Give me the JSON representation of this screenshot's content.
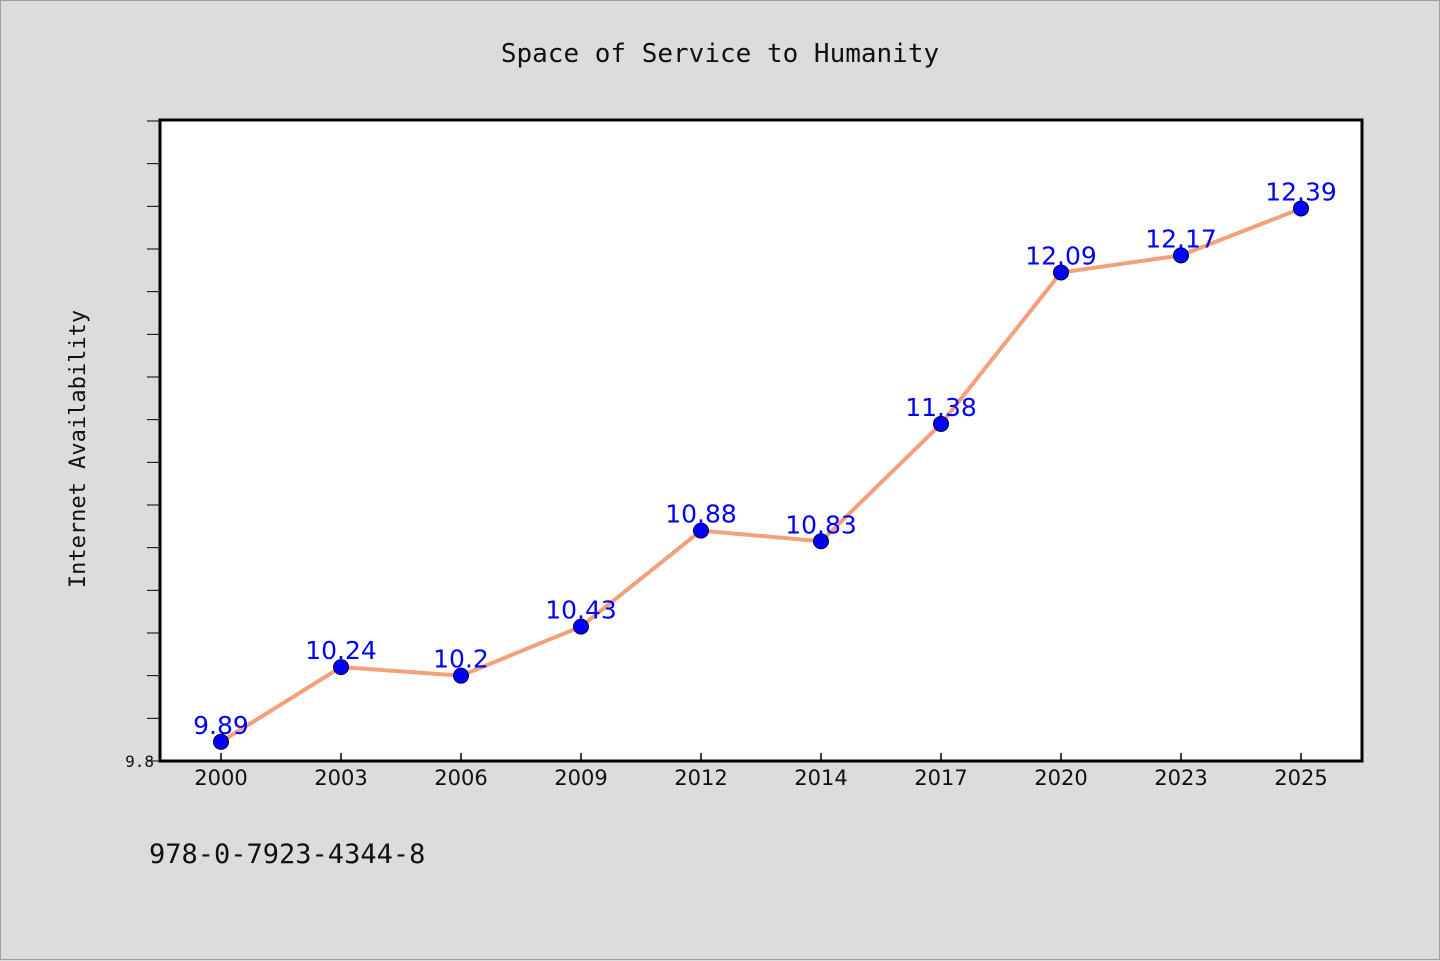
{
  "chart_data": {
    "type": "line",
    "title": "Space of Service to Humanity",
    "xlabel": "",
    "ylabel": "Internet Availability",
    "categories": [
      "2000",
      "2003",
      "2006",
      "2009",
      "2012",
      "2014",
      "2017",
      "2020",
      "2023",
      "2025"
    ],
    "values": [
      9.89,
      10.24,
      10.2,
      10.43,
      10.88,
      10.83,
      11.38,
      12.09,
      12.17,
      12.39
    ],
    "data_labels": [
      "9.89",
      "10.24",
      "10.2",
      "10.43",
      "10.88",
      "10.83",
      "11.38",
      "12.09",
      "12.17",
      "12.39"
    ],
    "ylim": [
      9.8,
      12.8
    ],
    "y_tick_labels": [
      {
        "value": 9.8,
        "label": "9.8"
      }
    ],
    "y_minor_tick_step": 0.2,
    "grid": false,
    "legend": "none",
    "colors": {
      "line": "#f4a07a",
      "marker": "#0000ff",
      "label": "#0000ff",
      "plot_background": "#ffffff",
      "page_background": "#dcdcdc"
    }
  },
  "footer": {
    "isbn": "978-0-7923-4344-8"
  }
}
